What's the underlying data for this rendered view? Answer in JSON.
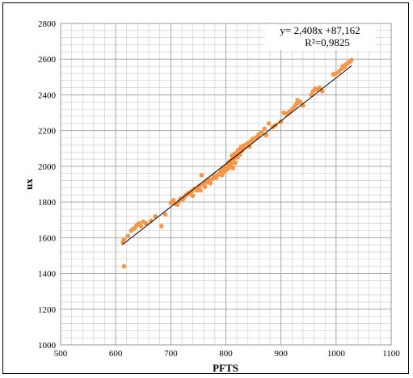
{
  "chart_data": {
    "type": "scatter",
    "xlabel": "PFTS",
    "ylabel": "ux",
    "xlim": [
      500,
      1100
    ],
    "ylim": [
      1000,
      2800
    ],
    "x_ticks": [
      "500",
      "600",
      "700",
      "800",
      "900",
      "1000",
      "1100"
    ],
    "y_ticks": [
      "1000",
      "1200",
      "1400",
      "1600",
      "1800",
      "2000",
      "2200",
      "2400",
      "2600",
      "2800"
    ],
    "grid": true,
    "point_color": "#f79646",
    "trendline": {
      "slope": 2.408,
      "intercept": 87.162,
      "x_range": [
        612,
        1028
      ],
      "color": "#000000"
    },
    "annotations": {
      "equation": "y= 2,408x +87,162",
      "r_squared": "R²=0,9825"
    },
    "points": [
      [
        615,
        1440
      ],
      [
        613,
        1575
      ],
      [
        615,
        1590
      ],
      [
        622,
        1610
      ],
      [
        628,
        1640
      ],
      [
        632,
        1650
      ],
      [
        635,
        1655
      ],
      [
        638,
        1670
      ],
      [
        642,
        1680
      ],
      [
        646,
        1665
      ],
      [
        650,
        1690
      ],
      [
        655,
        1680
      ],
      [
        664,
        1695
      ],
      [
        672,
        1720
      ],
      [
        683,
        1665
      ],
      [
        690,
        1730
      ],
      [
        700,
        1795
      ],
      [
        705,
        1810
      ],
      [
        708,
        1790
      ],
      [
        712,
        1785
      ],
      [
        715,
        1805
      ],
      [
        718,
        1820
      ],
      [
        722,
        1815
      ],
      [
        725,
        1830
      ],
      [
        728,
        1840
      ],
      [
        732,
        1850
      ],
      [
        735,
        1845
      ],
      [
        738,
        1860
      ],
      [
        740,
        1835
      ],
      [
        743,
        1875
      ],
      [
        745,
        1870
      ],
      [
        748,
        1865
      ],
      [
        750,
        1880
      ],
      [
        752,
        1890
      ],
      [
        754,
        1865
      ],
      [
        756,
        1950
      ],
      [
        758,
        1900
      ],
      [
        760,
        1905
      ],
      [
        762,
        1885
      ],
      [
        765,
        1910
      ],
      [
        768,
        1925
      ],
      [
        770,
        1915
      ],
      [
        772,
        1905
      ],
      [
        775,
        1930
      ],
      [
        778,
        1940
      ],
      [
        780,
        1945
      ],
      [
        782,
        1935
      ],
      [
        785,
        1950
      ],
      [
        788,
        1960
      ],
      [
        790,
        1965
      ],
      [
        792,
        1975
      ],
      [
        793,
        1950
      ],
      [
        795,
        1985
      ],
      [
        797,
        1970
      ],
      [
        798,
        1990
      ],
      [
        800,
        2000
      ],
      [
        801,
        1980
      ],
      [
        803,
        2010
      ],
      [
        804,
        1995
      ],
      [
        805,
        1990
      ],
      [
        806,
        2025
      ],
      [
        808,
        2030
      ],
      [
        809,
        2005
      ],
      [
        810,
        2015
      ],
      [
        811,
        2060
      ],
      [
        812,
        2040
      ],
      [
        813,
        1990
      ],
      [
        815,
        2045
      ],
      [
        816,
        2070
      ],
      [
        817,
        2020
      ],
      [
        818,
        2055
      ],
      [
        820,
        2075
      ],
      [
        821,
        2050
      ],
      [
        822,
        2090
      ],
      [
        824,
        2080
      ],
      [
        825,
        2065
      ],
      [
        826,
        2100
      ],
      [
        828,
        2110
      ],
      [
        829,
        2085
      ],
      [
        830,
        2095
      ],
      [
        832,
        2115
      ],
      [
        834,
        2105
      ],
      [
        836,
        2120
      ],
      [
        838,
        2125
      ],
      [
        840,
        2130
      ],
      [
        843,
        2110
      ],
      [
        845,
        2140
      ],
      [
        848,
        2150
      ],
      [
        850,
        2155
      ],
      [
        855,
        2160
      ],
      [
        858,
        2170
      ],
      [
        860,
        2180
      ],
      [
        865,
        2190
      ],
      [
        870,
        2210
      ],
      [
        873,
        2175
      ],
      [
        878,
        2240
      ],
      [
        885,
        2220
      ],
      [
        890,
        2230
      ],
      [
        900,
        2250
      ],
      [
        905,
        2300
      ],
      [
        910,
        2295
      ],
      [
        915,
        2305
      ],
      [
        920,
        2320
      ],
      [
        925,
        2335
      ],
      [
        928,
        2350
      ],
      [
        930,
        2370
      ],
      [
        932,
        2355
      ],
      [
        935,
        2360
      ],
      [
        940,
        2340
      ],
      [
        955,
        2400
      ],
      [
        958,
        2420
      ],
      [
        962,
        2435
      ],
      [
        965,
        2430
      ],
      [
        970,
        2440
      ],
      [
        975,
        2420
      ],
      [
        995,
        2515
      ],
      [
        1000,
        2520
      ],
      [
        1005,
        2530
      ],
      [
        1010,
        2545
      ],
      [
        1012,
        2560
      ],
      [
        1015,
        2555
      ],
      [
        1018,
        2570
      ],
      [
        1020,
        2575
      ],
      [
        1022,
        2580
      ],
      [
        1025,
        2585
      ],
      [
        1028,
        2595
      ]
    ]
  }
}
